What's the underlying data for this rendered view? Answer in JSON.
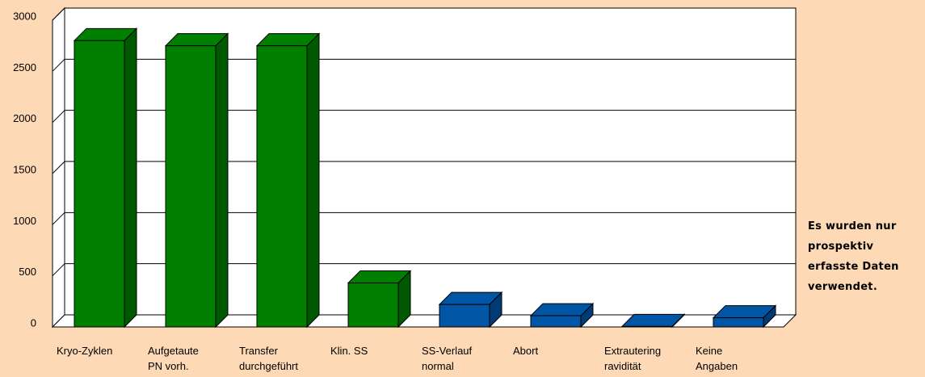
{
  "chart_data": {
    "type": "bar3d",
    "categories": [
      "Kryo-Zyklen",
      "Aufgetaute\nPN vorh.",
      "Transfer\ndurchgeführt",
      "Klin. SS",
      "SS-Verlauf\nnormal",
      "Abort",
      "Extrautering\nravidität",
      "Keine\nAngaben"
    ],
    "values": [
      2800,
      2750,
      2750,
      430,
      220,
      110,
      5,
      90
    ],
    "colors": [
      "#007f00",
      "#007f00",
      "#007f00",
      "#007f00",
      "#0055a5",
      "#0055a5",
      "#0055a5",
      "#0055a5"
    ],
    "ylim": [
      0,
      3000
    ],
    "yticks": [
      0,
      500,
      1000,
      1500,
      2000,
      2500,
      3000
    ],
    "grid": true,
    "annotation": "Es wurden nur\nprospektiv\nerfasste Daten\nverwendet."
  }
}
